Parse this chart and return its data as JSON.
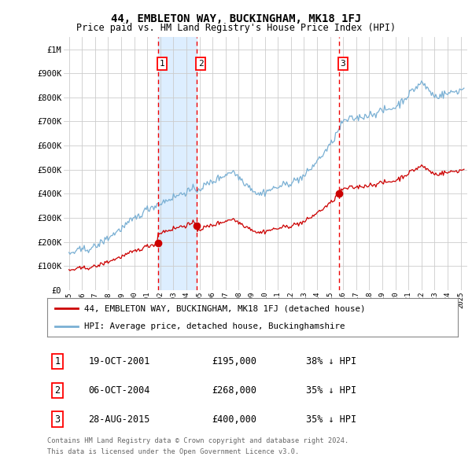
{
  "title": "44, EMBLETON WAY, BUCKINGHAM, MK18 1FJ",
  "subtitle": "Price paid vs. HM Land Registry's House Price Index (HPI)",
  "legend_line1": "44, EMBLETON WAY, BUCKINGHAM, MK18 1FJ (detached house)",
  "legend_line2": "HPI: Average price, detached house, Buckinghamshire",
  "footer1": "Contains HM Land Registry data © Crown copyright and database right 2024.",
  "footer2": "This data is licensed under the Open Government Licence v3.0.",
  "sale_color": "#cc0000",
  "hpi_color": "#7ab0d4",
  "vline_color": "#ee0000",
  "shade_color": "#ddeeff",
  "background_color": "#ffffff",
  "grid_color": "#cccccc",
  "ylim": [
    0,
    1050000
  ],
  "yticks": [
    0,
    100000,
    200000,
    300000,
    400000,
    500000,
    600000,
    700000,
    800000,
    900000,
    1000000
  ],
  "ytick_labels": [
    "£0",
    "£100K",
    "£200K",
    "£300K",
    "£400K",
    "£500K",
    "£600K",
    "£700K",
    "£800K",
    "£900K",
    "£1M"
  ],
  "sale_times": [
    2001.8,
    2004.77,
    2015.66
  ],
  "sale_prices": [
    195000,
    268000,
    400000
  ],
  "sale_labels": [
    "1",
    "2",
    "3"
  ],
  "table": [
    {
      "num": "1",
      "date": "19-OCT-2001",
      "price": "£195,000",
      "hpi": "38% ↓ HPI"
    },
    {
      "num": "2",
      "date": "06-OCT-2004",
      "price": "£268,000",
      "hpi": "35% ↓ HPI"
    },
    {
      "num": "3",
      "date": "28-AUG-2015",
      "price": "£400,000",
      "hpi": "35% ↓ HPI"
    }
  ]
}
